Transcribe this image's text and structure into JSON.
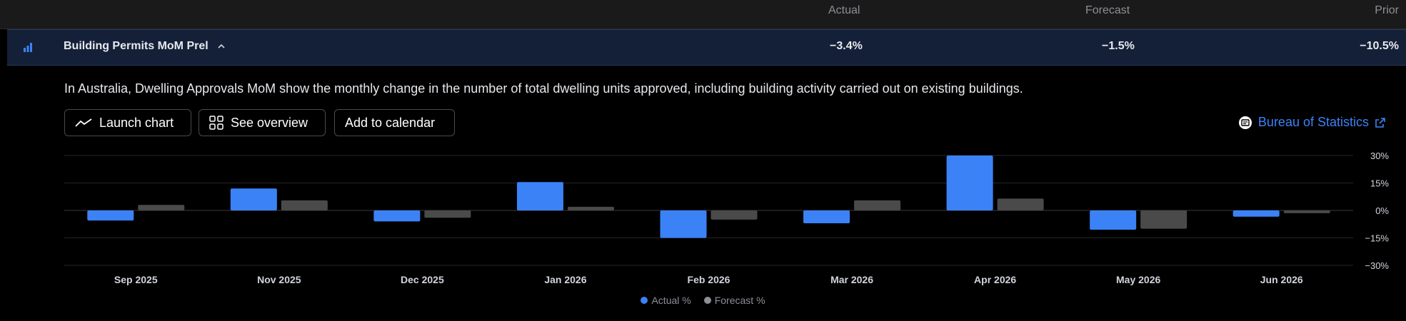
{
  "table_header": {
    "actual": "Actual",
    "forecast": "Forecast",
    "prior": "Prior"
  },
  "event": {
    "name": "Building Permits MoM Prel",
    "actual": "−3.4%",
    "forecast": "−1.5%",
    "prior": "−10.5%",
    "icon": "bar-chart-icon"
  },
  "description": "In Australia, Dwelling Approvals MoM show the monthly change in the number of total dwelling units approved, including building activity carried out on existing buildings.",
  "buttons": {
    "launch_chart": "Launch chart",
    "see_overview": "See overview",
    "add_to_calendar": "Add to calendar"
  },
  "source": {
    "label": "Bureau of Statistics"
  },
  "colors": {
    "actual": "#3b82f6",
    "forecast": "#4a4a4a",
    "accent": "#3b82f6"
  },
  "chart_data": {
    "type": "bar",
    "categories": [
      "Sep 2025",
      "Nov 2025",
      "Dec 2025",
      "Jan 2026",
      "Feb 2026",
      "Mar 2026",
      "Apr 2026",
      "May 2026",
      "Jun 2026"
    ],
    "series": [
      {
        "name": "Actual %",
        "values": [
          -5.5,
          12,
          -6,
          15.5,
          -15,
          -7,
          30,
          -10.5,
          -3.4
        ]
      },
      {
        "name": "Forecast %",
        "values": [
          3,
          5.5,
          -4,
          2,
          -5,
          5.5,
          6.5,
          -10,
          -1.5
        ]
      }
    ],
    "y_ticks": [
      "30%",
      "15%",
      "0%",
      "−15%",
      "−30%"
    ],
    "ylim": [
      -30,
      30
    ],
    "grid": true,
    "legend": "bottom-center"
  }
}
